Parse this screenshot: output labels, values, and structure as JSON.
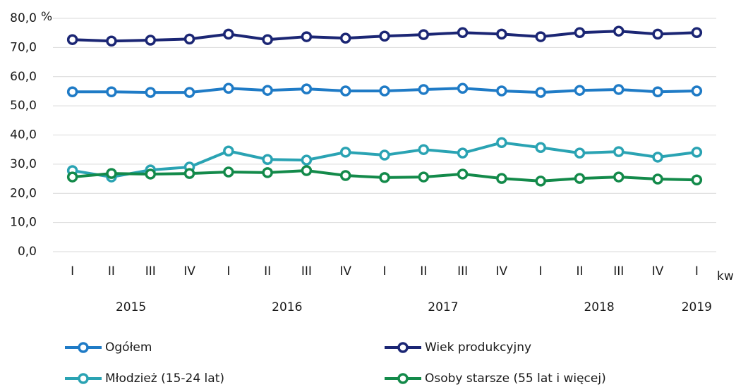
{
  "chart_data": {
    "type": "line",
    "y_unit": "%",
    "x_label": "kw",
    "categories": [
      "I",
      "II",
      "III",
      "IV",
      "I",
      "II",
      "III",
      "IV",
      "I",
      "II",
      "III",
      "IV",
      "I",
      "II",
      "III",
      "IV",
      "I"
    ],
    "groups": [
      "2015",
      "2016",
      "2017",
      "2018",
      "2019"
    ],
    "ylim": [
      0,
      80
    ],
    "yticks": [
      {
        "value": 0,
        "label": "0,0"
      },
      {
        "value": 10,
        "label": "10,0"
      },
      {
        "value": 20,
        "label": "20,0"
      },
      {
        "value": 30,
        "label": "30,0"
      },
      {
        "value": 40,
        "label": "40,0"
      },
      {
        "value": 50,
        "label": "50,0"
      },
      {
        "value": 60,
        "label": "60,0"
      },
      {
        "value": 70,
        "label": "70,0"
      },
      {
        "value": 80,
        "label": "80,0"
      }
    ],
    "grid": true,
    "series": [
      {
        "name": "Ogółem",
        "color": "#1f7bc6",
        "values": [
          54.8,
          54.8,
          54.6,
          54.6,
          56.0,
          55.3,
          55.8,
          55.1,
          55.1,
          55.6,
          56.0,
          55.1,
          54.6,
          55.3,
          55.6,
          54.8,
          55.1
        ]
      },
      {
        "name": "Wiek produkcyjny",
        "color": "#1b2674",
        "values": [
          72.7,
          72.2,
          72.5,
          72.9,
          74.6,
          72.7,
          73.7,
          73.2,
          73.9,
          74.4,
          75.1,
          74.6,
          73.7,
          75.1,
          75.6,
          74.6,
          75.1
        ]
      },
      {
        "name": "Młodzież (15-24 lat)",
        "color": "#2aa3b3",
        "values": [
          27.8,
          25.6,
          28.0,
          29.0,
          34.5,
          31.6,
          31.4,
          34.1,
          33.1,
          35.0,
          33.8,
          37.4,
          35.7,
          33.8,
          34.3,
          32.4,
          34.1
        ]
      },
      {
        "name": "Osoby starsze (55 lat i więcej)",
        "color": "#138a4a",
        "values": [
          25.6,
          26.8,
          26.6,
          26.8,
          27.3,
          27.1,
          27.8,
          26.1,
          25.4,
          25.6,
          26.6,
          25.1,
          24.2,
          25.1,
          25.6,
          24.9,
          24.6
        ]
      }
    ]
  }
}
